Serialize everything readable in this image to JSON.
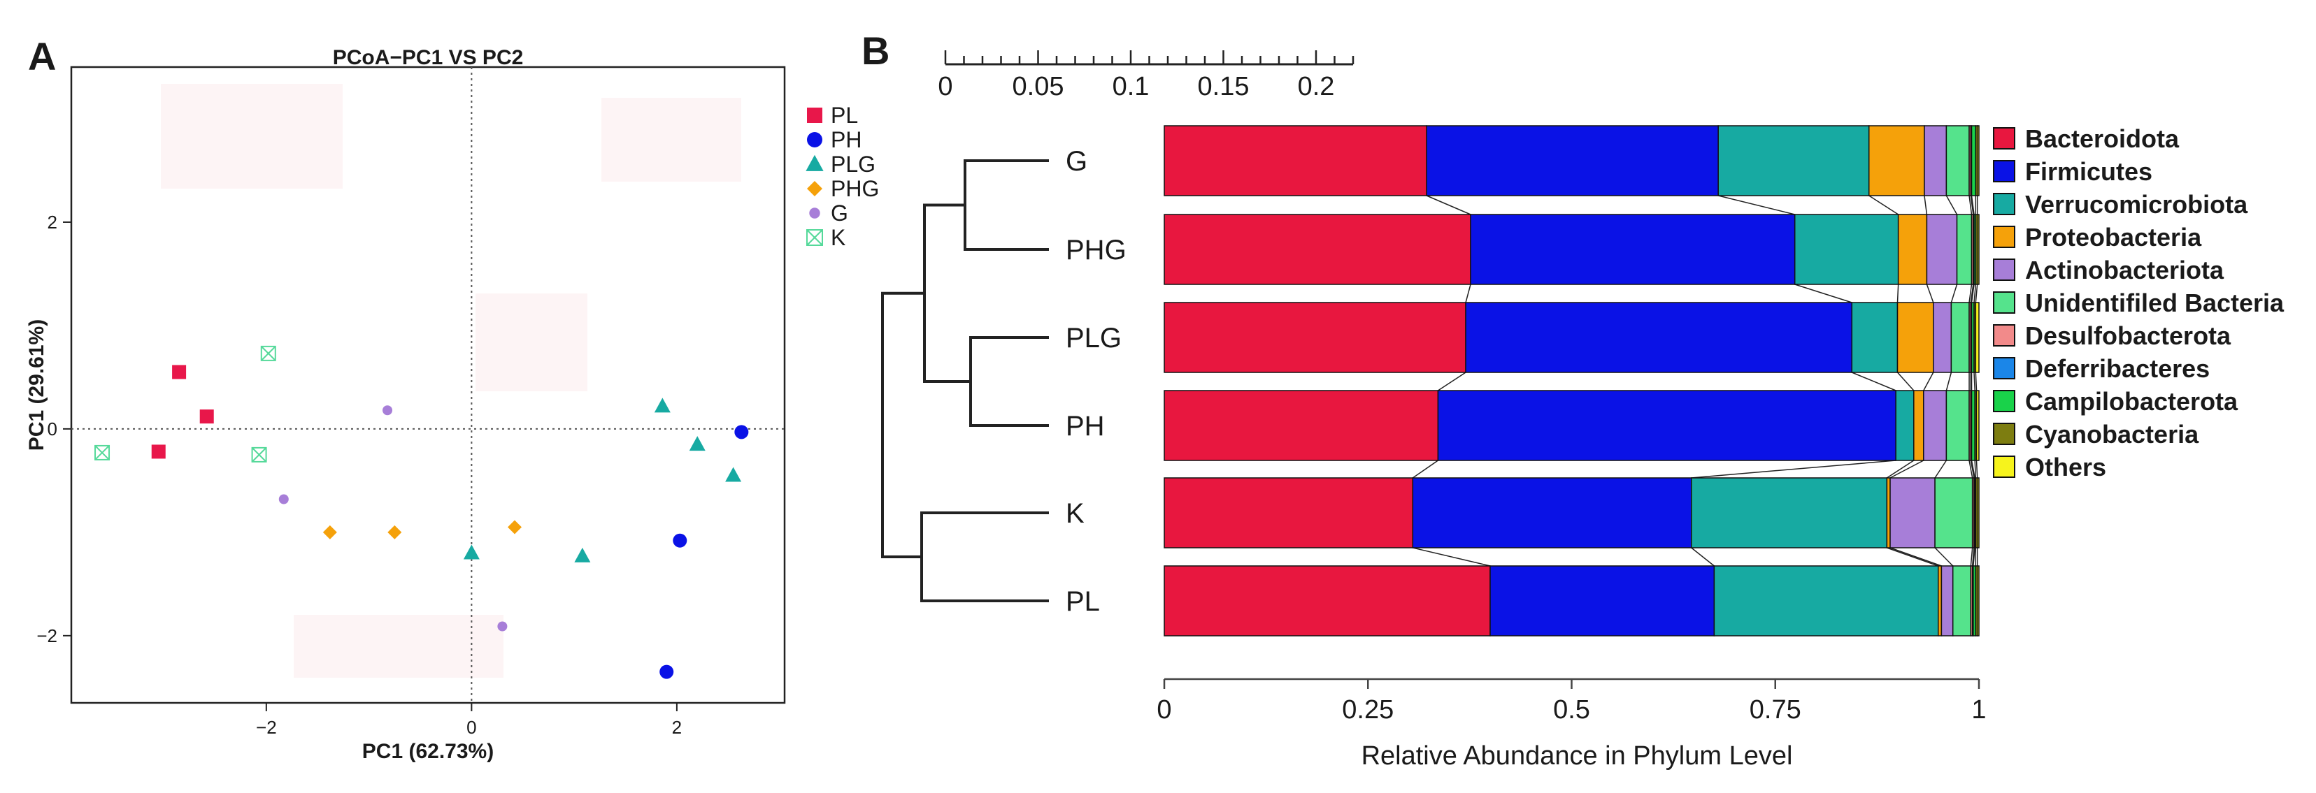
{
  "chart_data": [
    {
      "panel": "A",
      "type": "scatter",
      "title": "PCoA−PC1 VS PC2",
      "xlabel": "PC1 (62.73%)",
      "ylabel": "PC1 (29.61%)",
      "xlim": [
        -3.9,
        3.05
      ],
      "ylim": [
        -2.65,
        3.5
      ],
      "xticks": [
        -2,
        0,
        2
      ],
      "yticks": [
        -2,
        0,
        2
      ],
      "tick_labels": {
        "x": [
          "−2",
          "0",
          "2"
        ],
        "y": [
          "−2",
          "0",
          "2"
        ]
      },
      "reference_lines": {
        "x": 0,
        "y": 0,
        "style": "dotted"
      },
      "legend_position": "right",
      "series": [
        {
          "name": "PL",
          "shape": "square",
          "color": "#e8174a",
          "points": [
            [
              -2.85,
              0.55
            ],
            [
              -2.58,
              0.12
            ],
            [
              -3.05,
              -0.22
            ]
          ]
        },
        {
          "name": "PH",
          "shape": "circle",
          "color": "#0a12e6",
          "points": [
            [
              2.63,
              -0.03
            ],
            [
              2.03,
              -1.08
            ],
            [
              1.9,
              -2.35
            ]
          ]
        },
        {
          "name": "PLG",
          "shape": "triangle",
          "color": "#17aaa2",
          "points": [
            [
              1.86,
              0.22
            ],
            [
              2.2,
              -0.15
            ],
            [
              2.55,
              -0.45
            ],
            [
              0.0,
              -1.2
            ],
            [
              1.08,
              -1.23
            ]
          ]
        },
        {
          "name": "PHG",
          "shape": "diamond",
          "color": "#f5a10a",
          "points": [
            [
              -1.38,
              -1.0
            ],
            [
              -0.75,
              -1.0
            ],
            [
              0.42,
              -0.95
            ]
          ]
        },
        {
          "name": "G",
          "shape": "circle-small",
          "color": "#a77ed8",
          "points": [
            [
              -0.82,
              0.18
            ],
            [
              -1.83,
              -0.68
            ],
            [
              0.3,
              -1.91
            ]
          ]
        },
        {
          "name": "K",
          "shape": "boxed-x",
          "color": "#55d99a",
          "points": [
            [
              -1.98,
              0.73
            ],
            [
              -2.07,
              -0.25
            ],
            [
              -3.6,
              -0.23
            ]
          ]
        }
      ]
    },
    {
      "panel": "B",
      "type": "bar",
      "orientation": "horizontal-stacked",
      "xlabel": "Relative Abundance in Phylum Level",
      "xlim": [
        0,
        1
      ],
      "xticks": [
        0,
        0.25,
        0.5,
        0.75,
        1
      ],
      "tick_labels": [
        "0",
        "0.25",
        "0.5",
        "0.75",
        "1"
      ],
      "dendrogram_scale": {
        "ticks": [
          "0",
          "0.05",
          "0.1",
          "0.15",
          "0.2"
        ],
        "range": [
          0,
          0.22
        ]
      },
      "legend_position": "right",
      "categories": [
        "G",
        "PHG",
        "PLG",
        "PH",
        "K",
        "PL"
      ],
      "series": [
        {
          "name": "Bacteroidota",
          "color": "#e8173f",
          "values": [
            0.322,
            0.376,
            0.37,
            0.336,
            0.305,
            0.4
          ]
        },
        {
          "name": "Firmicutes",
          "color": "#0a12e6",
          "values": [
            0.358,
            0.398,
            0.474,
            0.562,
            0.342,
            0.275
          ]
        },
        {
          "name": "Verrucomicrobiota",
          "color": "#17aaa2",
          "values": [
            0.185,
            0.127,
            0.056,
            0.022,
            0.24,
            0.275
          ]
        },
        {
          "name": "Proteobacteria",
          "color": "#f5a10a",
          "values": [
            0.068,
            0.035,
            0.044,
            0.012,
            0.004,
            0.004
          ]
        },
        {
          "name": "Actinobacteriota",
          "color": "#a77ed8",
          "values": [
            0.027,
            0.037,
            0.022,
            0.028,
            0.055,
            0.014
          ]
        },
        {
          "name": "Unidentifiled Bacteria",
          "color": "#55e38c",
          "values": [
            0.028,
            0.018,
            0.022,
            0.028,
            0.046,
            0.022
          ]
        },
        {
          "name": "Desulfobacterota",
          "color": "#f28a8a",
          "values": [
            0.002,
            0.002,
            0.002,
            0.002,
            0.002,
            0.002
          ]
        },
        {
          "name": "Deferribacteres",
          "color": "#1b86e8",
          "values": [
            0.001,
            0.001,
            0.001,
            0.001,
            0.001,
            0.001
          ]
        },
        {
          "name": "Campilobacterota",
          "color": "#19d24a",
          "values": [
            0.005,
            0.002,
            0.003,
            0.004,
            0.001,
            0.003
          ]
        },
        {
          "name": "Cyanobacteria",
          "color": "#7d7d10",
          "values": [
            0.002,
            0.002,
            0.002,
            0.002,
            0.002,
            0.002
          ]
        },
        {
          "name": "Others",
          "color": "#f6f31c",
          "values": [
            0.002,
            0.002,
            0.004,
            0.003,
            0.002,
            0.002
          ]
        }
      ]
    }
  ],
  "panels": {
    "a_letter": "A",
    "b_letter": "B"
  }
}
